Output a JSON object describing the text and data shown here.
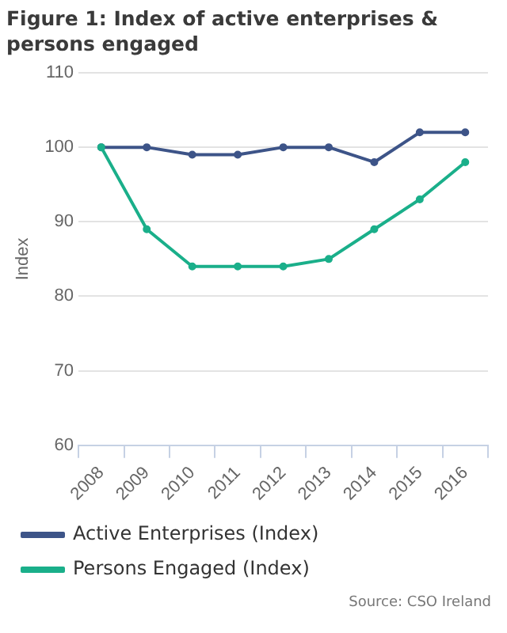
{
  "chart_data": {
    "type": "line",
    "title": "Figure 1: Index of active enterprises & persons engaged",
    "ylabel": "Index",
    "categories": [
      "2008",
      "2009",
      "2010",
      "2011",
      "2012",
      "2013",
      "2014",
      "2015",
      "2016"
    ],
    "series": [
      {
        "name": "Active Enterprises (Index)",
        "color": "#3d5488",
        "values": [
          100,
          100,
          99,
          99,
          100,
          100,
          98,
          102,
          102
        ]
      },
      {
        "name": "Persons Engaged (Index)",
        "color": "#1aaf8a",
        "values": [
          100,
          89,
          84,
          84,
          84,
          85,
          89,
          93,
          98
        ]
      }
    ],
    "ylim": [
      60,
      110
    ],
    "yticks": [
      60,
      70,
      80,
      90,
      100,
      110
    ],
    "grid": "y",
    "legend": "bottom",
    "marker": "circle",
    "line_style": "solid",
    "annotations": [
      "Source: CSO Ireland"
    ]
  }
}
